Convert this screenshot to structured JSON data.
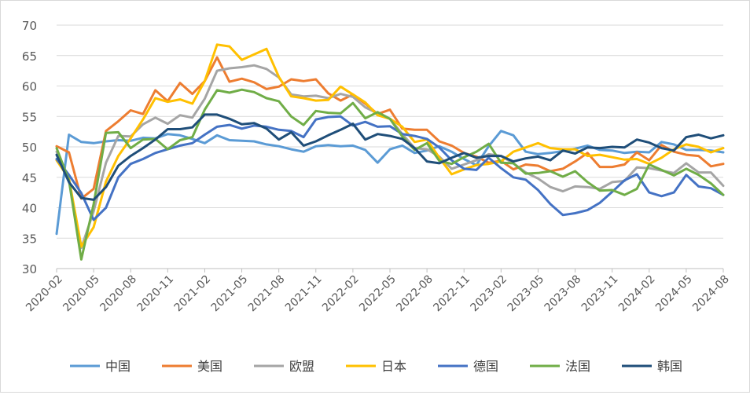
{
  "chart_data": {
    "type": "line",
    "title": "",
    "xlabel": "",
    "ylabel": "",
    "ylim": [
      30,
      70
    ],
    "yticks": [
      30,
      35,
      40,
      45,
      50,
      55,
      60,
      65,
      70
    ],
    "grid": true,
    "legend_position": "bottom",
    "x": [
      "2020-02",
      "2020-03",
      "2020-04",
      "2020-05",
      "2020-06",
      "2020-07",
      "2020-08",
      "2020-09",
      "2020-10",
      "2020-11",
      "2020-12",
      "2021-01",
      "2021-02",
      "2021-03",
      "2021-04",
      "2021-05",
      "2021-06",
      "2021-07",
      "2021-08",
      "2021-09",
      "2021-10",
      "2021-11",
      "2021-12",
      "2022-01",
      "2022-02",
      "2022-03",
      "2022-04",
      "2022-05",
      "2022-06",
      "2022-07",
      "2022-08",
      "2022-09",
      "2022-10",
      "2022-11",
      "2022-12",
      "2023-01",
      "2023-02",
      "2023-03",
      "2023-04",
      "2023-05",
      "2023-06",
      "2023-07",
      "2023-08",
      "2023-09",
      "2023-10",
      "2023-11",
      "2023-12",
      "2024-01",
      "2024-02",
      "2024-03",
      "2024-04",
      "2024-05",
      "2024-06",
      "2024-07",
      "2024-08"
    ],
    "xtick_labels": [
      "2020-02",
      "2020-05",
      "2020-08",
      "2020-11",
      "2021-02",
      "2021-05",
      "2021-08",
      "2021-11",
      "2022-02",
      "2022-05",
      "2022-08",
      "2022-11",
      "2023-02",
      "2023-05",
      "2023-08",
      "2023-11",
      "2024-02",
      "2024-05",
      "2024-08"
    ],
    "series": [
      {
        "name": "中国",
        "color": "#5b9bd5",
        "values": [
          35.7,
          52.0,
          50.8,
          50.6,
          50.9,
          51.1,
          51.0,
          51.5,
          51.4,
          52.1,
          51.9,
          51.3,
          50.6,
          51.9,
          51.1,
          51.0,
          50.9,
          50.4,
          50.1,
          49.6,
          49.2,
          50.1,
          50.3,
          50.1,
          50.2,
          49.5,
          47.4,
          49.6,
          50.2,
          49.0,
          49.4,
          50.1,
          49.2,
          48.0,
          47.0,
          50.1,
          52.6,
          51.9,
          49.2,
          48.8,
          49.0,
          49.3,
          49.7,
          50.2,
          49.5,
          49.4,
          49.0,
          49.2,
          49.1,
          50.8,
          50.4,
          49.5,
          49.5,
          49.4,
          49.1
        ]
      },
      {
        "name": "美国",
        "color": "#ed7d31",
        "values": [
          50.1,
          49.1,
          41.5,
          43.1,
          52.6,
          54.2,
          56.0,
          55.4,
          59.3,
          57.5,
          60.5,
          58.7,
          60.8,
          64.7,
          60.7,
          61.2,
          60.6,
          59.5,
          59.9,
          61.1,
          60.8,
          61.1,
          58.8,
          57.6,
          58.6,
          57.1,
          55.4,
          56.1,
          53.0,
          52.8,
          52.8,
          50.9,
          50.2,
          49.0,
          48.4,
          47.4,
          47.7,
          46.3,
          47.1,
          46.9,
          46.0,
          46.4,
          47.6,
          49.0,
          46.7,
          46.7,
          47.1,
          49.1,
          47.8,
          50.3,
          49.2,
          48.7,
          48.5,
          46.8,
          47.2
        ]
      },
      {
        "name": "欧盟",
        "color": "#a5a5a5",
        "values": [
          49.2,
          44.5,
          33.4,
          39.4,
          47.4,
          51.8,
          51.7,
          53.7,
          54.8,
          53.8,
          55.2,
          54.8,
          57.9,
          62.5,
          62.9,
          63.1,
          63.4,
          62.8,
          61.4,
          58.6,
          58.3,
          58.4,
          58.0,
          58.7,
          58.2,
          56.5,
          55.5,
          54.6,
          52.1,
          49.8,
          49.6,
          48.4,
          46.4,
          47.1,
          47.8,
          48.8,
          48.5,
          47.3,
          45.8,
          44.8,
          43.4,
          42.7,
          43.5,
          43.4,
          43.1,
          44.2,
          44.4,
          46.6,
          46.5,
          46.1,
          45.7,
          47.3,
          45.8,
          45.8,
          43.6
        ]
      },
      {
        "name": "日本",
        "color": "#ffc000",
        "values": [
          47.8,
          44.8,
          33.6,
          36.8,
          44.3,
          48.5,
          51.4,
          54.5,
          58.0,
          57.4,
          57.8,
          57.1,
          60.8,
          66.8,
          66.5,
          64.3,
          65.2,
          66.1,
          61.5,
          58.3,
          58.0,
          57.6,
          57.7,
          59.9,
          58.6,
          57.3,
          55.2,
          54.6,
          53.3,
          50.8,
          51.2,
          48.2,
          45.5,
          46.3,
          47.0,
          47.2,
          47.6,
          49.2,
          49.9,
          50.6,
          49.8,
          49.6,
          49.6,
          48.5,
          48.7,
          48.3,
          47.9,
          48.0,
          47.2,
          48.2,
          49.6,
          50.4,
          50.0,
          49.1,
          49.8
        ]
      },
      {
        "name": "德国",
        "color": "#4472c4",
        "values": [
          48.0,
          45.4,
          42.4,
          38.0,
          40.0,
          45.0,
          47.2,
          48.0,
          49.0,
          49.6,
          50.2,
          50.6,
          52.0,
          53.3,
          53.6,
          53.0,
          53.5,
          53.3,
          52.8,
          52.6,
          51.6,
          54.5,
          54.9,
          55.0,
          53.5,
          54.1,
          53.3,
          53.4,
          52.1,
          51.8,
          51.3,
          49.9,
          47.8,
          46.4,
          46.2,
          48.2,
          46.5,
          45.0,
          44.6,
          42.9,
          40.6,
          38.8,
          39.1,
          39.6,
          40.8,
          42.6,
          44.5,
          45.5,
          42.5,
          41.9,
          42.5,
          45.4,
          43.5,
          43.2,
          42.1
        ]
      },
      {
        "name": "法国",
        "color": "#70ad47",
        "values": [
          49.8,
          44.5,
          31.5,
          40.6,
          52.3,
          52.4,
          49.8,
          51.2,
          51.3,
          49.6,
          51.1,
          51.6,
          56.1,
          59.3,
          58.9,
          59.4,
          59.0,
          58.0,
          57.5,
          55.0,
          53.6,
          55.9,
          55.6,
          55.5,
          57.2,
          54.7,
          55.7,
          54.6,
          51.7,
          49.5,
          50.6,
          47.7,
          47.2,
          48.3,
          49.2,
          50.5,
          47.4,
          47.3,
          45.6,
          45.7,
          46.0,
          45.1,
          46.0,
          44.2,
          42.8,
          42.9,
          42.1,
          43.1,
          47.1,
          46.2,
          45.3,
          46.4,
          45.4,
          44.0,
          42.1
        ]
      },
      {
        "name": "韩国",
        "color": "#1f4e79",
        "values": [
          48.7,
          44.2,
          41.6,
          41.3,
          43.4,
          46.9,
          48.5,
          49.8,
          51.2,
          52.9,
          52.9,
          53.2,
          55.3,
          55.3,
          54.6,
          53.7,
          53.9,
          53.0,
          51.2,
          52.4,
          50.2,
          50.9,
          51.9,
          52.8,
          53.8,
          51.2,
          52.1,
          51.8,
          51.3,
          49.8,
          47.6,
          47.3,
          48.2,
          49.0,
          48.2,
          48.5,
          48.5,
          47.6,
          48.1,
          48.4,
          47.8,
          49.4,
          48.9,
          49.9,
          49.8,
          50.0,
          49.9,
          51.2,
          50.7,
          49.8,
          49.4,
          51.6,
          52.0,
          51.4,
          51.9
        ]
      }
    ]
  }
}
